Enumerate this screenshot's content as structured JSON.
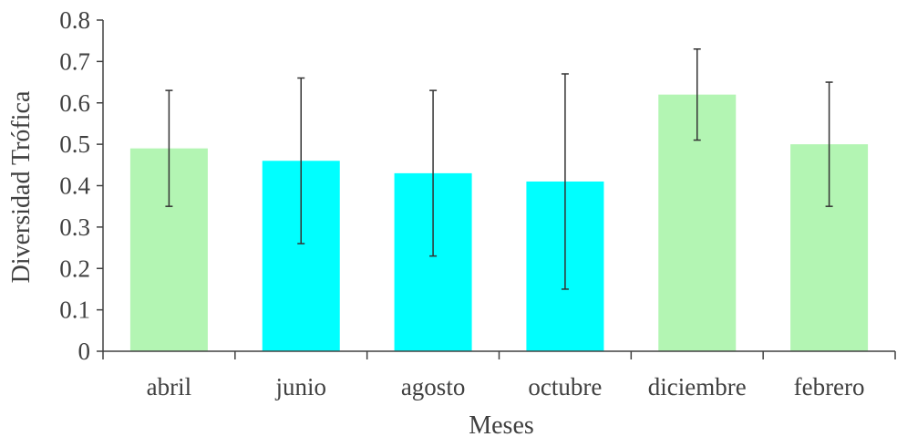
{
  "chart_data": {
    "type": "bar",
    "title": "",
    "xlabel": "Meses",
    "ylabel": "Diversidad Trófica",
    "ylim": [
      0,
      0.8
    ],
    "yticks": [
      "0",
      "0.1",
      "0.2",
      "0.3",
      "0.4",
      "0.5",
      "0.6",
      "0.7",
      "0.8"
    ],
    "categories": [
      "abril",
      "junio",
      "agosto",
      "octubre",
      "diciembre",
      "febrero"
    ],
    "values": [
      0.49,
      0.46,
      0.43,
      0.41,
      0.62,
      0.5
    ],
    "error_low": [
      0.35,
      0.26,
      0.23,
      0.15,
      0.51,
      0.35
    ],
    "error_high": [
      0.63,
      0.66,
      0.63,
      0.67,
      0.73,
      0.65
    ],
    "bar_colors": [
      "#b3f5b3",
      "#00ffff",
      "#00ffff",
      "#00ffff",
      "#b3f5b3",
      "#b3f5b3"
    ],
    "grid": false,
    "legend": "none"
  }
}
